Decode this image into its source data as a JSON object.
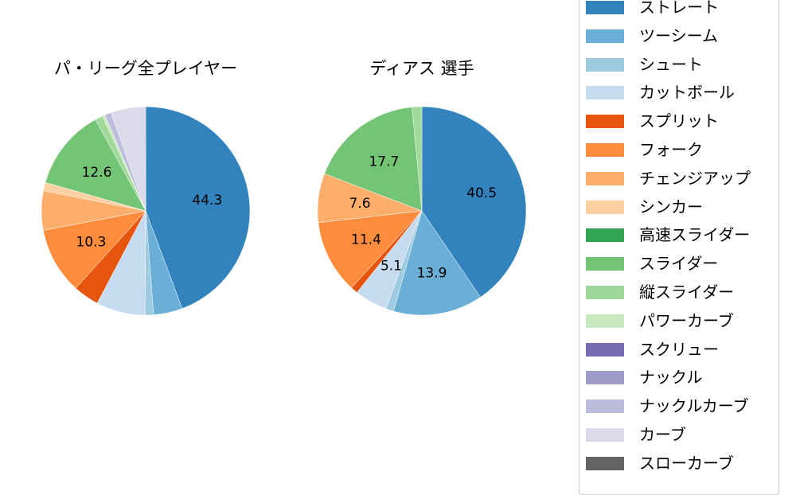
{
  "chart_data": [
    {
      "type": "pie",
      "title": "パ・リーグ全プレイヤー",
      "start_angle": "top, clockwise",
      "categories": [
        "ストレート",
        "ツーシーム",
        "シュート",
        "カットボール",
        "スプリット",
        "フォーク",
        "チェンジアップ",
        "シンカー",
        "高速スライダー",
        "スライダー",
        "縦スライダー",
        "パワーカーブ",
        "スクリュー",
        "ナックル",
        "ナックルカーブ",
        "カーブ",
        "スローカーブ"
      ],
      "values": [
        44.3,
        4.5,
        1.3,
        7.6,
        4.0,
        10.3,
        6.1,
        1.3,
        0.0,
        12.6,
        1.2,
        0.4,
        0.0,
        0.0,
        1.0,
        5.3,
        0.1
      ],
      "labels_shown": {
        "ストレート": "44.3",
        "フォーク": "10.3",
        "スライダー": "12.6"
      }
    },
    {
      "type": "pie",
      "title": "ディアス  選手",
      "start_angle": "top, clockwise",
      "categories": [
        "ストレート",
        "ツーシーム",
        "シュート",
        "カットボール",
        "スプリット",
        "フォーク",
        "チェンジアップ",
        "シンカー",
        "高速スライダー",
        "スライダー",
        "縦スライダー",
        "パワーカーブ",
        "スクリュー",
        "ナックル",
        "ナックルカーブ",
        "カーブ",
        "スローカーブ"
      ],
      "values": [
        40.5,
        13.9,
        1.2,
        5.1,
        1.1,
        11.4,
        7.6,
        0.0,
        0.0,
        17.7,
        1.5,
        0.0,
        0.0,
        0.0,
        0.0,
        0.0,
        0.0
      ],
      "labels_shown": {
        "ストレート": "40.5",
        "ツーシーム": "13.9",
        "カットボール": "5.1",
        "フォーク": "11.4",
        "チェンジアップ": "7.6",
        "スライダー": "17.7"
      }
    }
  ],
  "titles": {
    "left": "パ・リーグ全プレイヤー",
    "right": "ディアス  選手"
  },
  "legend": {
    "position": "right",
    "items": [
      {
        "label": "ストレート",
        "color": "#3182bd"
      },
      {
        "label": "ツーシーム",
        "color": "#6baed6"
      },
      {
        "label": "シュート",
        "color": "#9ecae1"
      },
      {
        "label": "カットボール",
        "color": "#c6dbef"
      },
      {
        "label": "スプリット",
        "color": "#e6550d"
      },
      {
        "label": "フォーク",
        "color": "#fd8d3c"
      },
      {
        "label": "チェンジアップ",
        "color": "#fdae6b"
      },
      {
        "label": "シンカー",
        "color": "#fdd0a2"
      },
      {
        "label": "高速スライダー",
        "color": "#31a354"
      },
      {
        "label": "スライダー",
        "color": "#74c476"
      },
      {
        "label": "縦スライダー",
        "color": "#a1d99b"
      },
      {
        "label": "パワーカーブ",
        "color": "#c7e9c0"
      },
      {
        "label": "スクリュー",
        "color": "#756bb1"
      },
      {
        "label": "ナックル",
        "color": "#9e9ac8"
      },
      {
        "label": "ナックルカーブ",
        "color": "#bcbddc"
      },
      {
        "label": "カーブ",
        "color": "#dadaeb"
      },
      {
        "label": "スローカーブ",
        "color": "#636363"
      }
    ]
  }
}
